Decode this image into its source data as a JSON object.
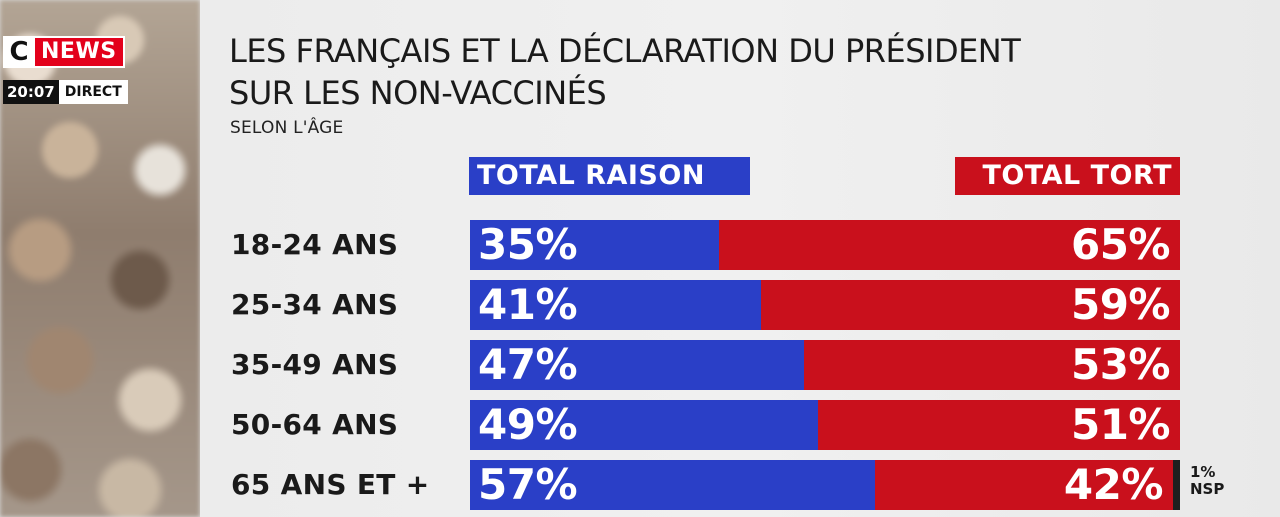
{
  "channel": {
    "logo_c": "C",
    "logo_news": "NEWS",
    "time": "20:07",
    "live": "DIRECT"
  },
  "chart_data": {
    "type": "bar",
    "orientation": "horizontal",
    "stacked": true,
    "title_lines": [
      "LES FRANÇAIS ET LA DÉCLARATION DU PRÉSIDENT",
      "SUR LES NON-VACCINÉS"
    ],
    "subtitle": "SELON L'ÂGE",
    "categories": [
      "18-24 ANS",
      "25-34 ANS",
      "35-49 ANS",
      "50-64 ANS",
      "65 ANS ET +"
    ],
    "series": [
      {
        "name": "TOTAL RAISON",
        "color": "#2a3fc7",
        "values": [
          35,
          41,
          47,
          49,
          57
        ],
        "labels": [
          "35%",
          "41%",
          "47%",
          "49%",
          "57%"
        ]
      },
      {
        "name": "TOTAL TORT",
        "color": "#c9101c",
        "values": [
          65,
          59,
          53,
          51,
          42
        ],
        "labels": [
          "65%",
          "59%",
          "53%",
          "51%",
          "42%"
        ]
      },
      {
        "name": "NSP",
        "color": "#1f1f1f",
        "values": [
          0,
          0,
          0,
          0,
          1
        ]
      }
    ],
    "annotations": [
      {
        "category": "65 ANS ET +",
        "text_lines": [
          "1%",
          "NSP"
        ]
      }
    ],
    "xlim": [
      0,
      100
    ],
    "legend_placement": "top"
  }
}
